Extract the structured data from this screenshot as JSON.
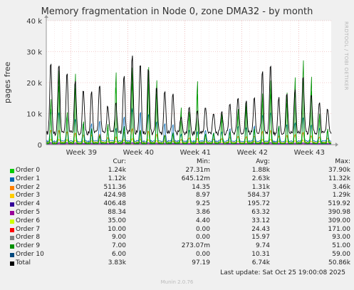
{
  "chart_data": {
    "type": "line",
    "title": "Memory fragmentation in Node 0, zone DMA32 - by month",
    "ylabel": "pages free",
    "side_text": "RRDTOOL / TOBI OETIKER",
    "ylim": [
      0,
      40000
    ],
    "y_ticks": [
      {
        "v": 0,
        "label": "0"
      },
      {
        "v": 10000,
        "label": "10 k"
      },
      {
        "v": 20000,
        "label": "20 k"
      },
      {
        "v": 30000,
        "label": "30 k"
      },
      {
        "v": 40000,
        "label": "40 k"
      }
    ],
    "x_ticks": [
      "Week 39",
      "Week 40",
      "Week 41",
      "Week 42",
      "Week 43"
    ],
    "days": 35,
    "total_peaks": [
      23500,
      22800,
      19500,
      17000,
      14500,
      13500,
      16500,
      9000,
      9500,
      19000,
      25500,
      23000,
      21500,
      15000,
      14000,
      13500,
      5500,
      9000,
      7000,
      8500,
      7000,
      7500,
      10000,
      12000,
      10500,
      11500,
      20000,
      22500,
      11500,
      13000,
      14000,
      18500,
      13000,
      10000,
      8000
    ],
    "order9_peaks": [
      18000,
      29500,
      12500,
      28000,
      9000,
      6000,
      3500,
      8000,
      28500,
      7000,
      30500,
      5500,
      31000,
      25500,
      3500,
      4500,
      14500,
      13000,
      25000,
      4000,
      4500,
      12000,
      5000,
      14000,
      17000,
      6000,
      20000,
      25500,
      7000,
      20500,
      26500,
      33500,
      27000,
      12000,
      6000
    ],
    "col_headers": [
      "Cur:",
      "Min:",
      "Avg:",
      "Max:"
    ],
    "series": [
      {
        "name": "Order 0",
        "color": "#00cc00",
        "cur": "1.24k",
        "min": "27.31m",
        "avg": "1.88k",
        "max": "37.90k"
      },
      {
        "name": "Order 1",
        "color": "#0066b3",
        "cur": "1.12k",
        "min": "645.12m",
        "avg": "2.63k",
        "max": "11.32k"
      },
      {
        "name": "Order 2",
        "color": "#ff8000",
        "cur": "511.36",
        "min": "14.35",
        "avg": "1.31k",
        "max": "3.46k"
      },
      {
        "name": "Order 3",
        "color": "#ffcc00",
        "cur": "424.98",
        "min": "8.97",
        "avg": "584.37",
        "max": "1.29k"
      },
      {
        "name": "Order 4",
        "color": "#330099",
        "cur": "406.48",
        "min": "9.25",
        "avg": "195.72",
        "max": "519.92"
      },
      {
        "name": "Order 5",
        "color": "#990099",
        "cur": "88.34",
        "min": "3.86",
        "avg": "63.32",
        "max": "390.98"
      },
      {
        "name": "Order 6",
        "color": "#ccff00",
        "cur": "35.00",
        "min": "4.40",
        "avg": "33.12",
        "max": "309.00"
      },
      {
        "name": "Order 7",
        "color": "#ff0000",
        "cur": "10.00",
        "min": "0.00",
        "avg": "24.43",
        "max": "171.00"
      },
      {
        "name": "Order 8",
        "color": "#808080",
        "cur": "9.00",
        "min": "0.00",
        "avg": "15.97",
        "max": "93.00"
      },
      {
        "name": "Order 9",
        "color": "#008f00",
        "cur": "7.00",
        "min": "273.07m",
        "avg": "9.74",
        "max": "51.00"
      },
      {
        "name": "Order 10",
        "color": "#00487d",
        "cur": "6.00",
        "min": "0.00",
        "avg": "10.31",
        "max": "59.00"
      },
      {
        "name": "Total",
        "color": "#000000",
        "cur": "3.83k",
        "min": "97.19",
        "avg": "6.74k",
        "max": "50.86k"
      }
    ],
    "grid": true
  },
  "last_update": "Last update: Sat Oct 25 19:00:08 2025",
  "footer": "Munin 2.0.76"
}
